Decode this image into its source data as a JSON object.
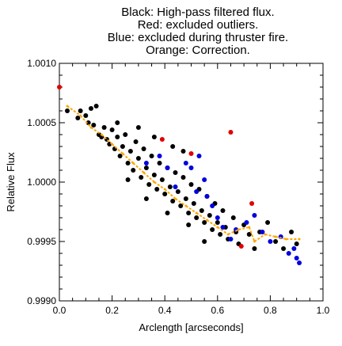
{
  "chart_data": {
    "type": "scatter",
    "title_lines": [
      "Black: High-pass filtered flux.",
      "Red: excluded outliers.",
      "Blue: excluded during thruster fire.",
      "Orange: Correction."
    ],
    "xlabel": "Arclength [arcseconds]",
    "ylabel": "Relative Flux",
    "xlim": [
      0.0,
      1.0
    ],
    "ylim": [
      0.999,
      1.001
    ],
    "x_ticks": [
      0.0,
      0.2,
      0.4,
      0.6,
      0.8,
      1.0
    ],
    "x_tick_labels": [
      "0.0",
      "0.2",
      "0.4",
      "0.6",
      "0.8",
      "1.0"
    ],
    "y_ticks": [
      0.999,
      0.9995,
      1.0,
      1.0005,
      1.001
    ],
    "y_tick_labels": [
      "0.9990",
      "0.9995",
      "1.0000",
      "1.0005",
      "1.0010"
    ],
    "grid": false,
    "series": [
      {
        "color": "#000000",
        "values": [
          [
            0.03,
            1.0006
          ],
          [
            0.07,
            1.00054
          ],
          [
            0.08,
            1.0006
          ],
          [
            0.1,
            1.00056
          ],
          [
            0.11,
            1.0005
          ],
          [
            0.12,
            1.00062
          ],
          [
            0.13,
            1.00048
          ],
          [
            0.14,
            1.00064
          ],
          [
            0.15,
            1.0004
          ],
          [
            0.16,
            1.00038
          ],
          [
            0.17,
            1.00046
          ],
          [
            0.18,
            1.00036
          ],
          [
            0.19,
            1.00032
          ],
          [
            0.2,
            1.00044
          ],
          [
            0.21,
            1.00028
          ],
          [
            0.22,
            1.00038
          ],
          [
            0.23,
            1.00022
          ],
          [
            0.24,
            1.0003
          ],
          [
            0.25,
            1.0004
          ],
          [
            0.26,
            1.00016
          ],
          [
            0.27,
            1.00026
          ],
          [
            0.28,
            1.0001
          ],
          [
            0.29,
            1.00034
          ],
          [
            0.3,
            1.0002
          ],
          [
            0.31,
            1.00004
          ],
          [
            0.32,
            1.00028
          ],
          [
            0.33,
            1.00012
          ],
          [
            0.34,
            0.99998
          ],
          [
            0.35,
            1.00022
          ],
          [
            0.36,
            1.00006
          ],
          [
            0.37,
            0.99994
          ],
          [
            0.38,
            1.00016
          ],
          [
            0.39,
            1.00002
          ],
          [
            0.4,
            0.9999
          ],
          [
            0.41,
            1.00012
          ],
          [
            0.42,
            0.99996
          ],
          [
            0.43,
            0.99984
          ],
          [
            0.44,
            1.00008
          ],
          [
            0.45,
            0.99992
          ],
          [
            0.46,
            0.9998
          ],
          [
            0.47,
            1.00004
          ],
          [
            0.48,
            0.99986
          ],
          [
            0.49,
            0.99974
          ],
          [
            0.5,
            0.99998
          ],
          [
            0.51,
            0.99982
          ],
          [
            0.52,
            0.9997
          ],
          [
            0.53,
            0.99994
          ],
          [
            0.54,
            0.99976
          ],
          [
            0.55,
            0.99966
          ],
          [
            0.56,
            0.99988
          ],
          [
            0.57,
            0.99972
          ],
          [
            0.58,
            0.9996
          ],
          [
            0.59,
            0.99982
          ],
          [
            0.6,
            0.99966
          ],
          [
            0.61,
            0.99956
          ],
          [
            0.62,
            0.99976
          ],
          [
            0.63,
            0.99962
          ],
          [
            0.64,
            0.99952
          ],
          [
            0.66,
            0.9997
          ],
          [
            0.67,
            0.99958
          ],
          [
            0.68,
            0.99948
          ],
          [
            0.7,
            0.99964
          ],
          [
            0.72,
            0.99956
          ],
          [
            0.74,
            0.99944
          ],
          [
            0.76,
            0.99958
          ],
          [
            0.79,
            0.99966
          ],
          [
            0.82,
            0.9995
          ],
          [
            0.85,
            0.99944
          ],
          [
            0.88,
            0.99958
          ],
          [
            0.9,
            0.99948
          ],
          [
            0.22,
            1.0005
          ],
          [
            0.3,
            1.00046
          ],
          [
            0.36,
            1.00038
          ],
          [
            0.43,
            1.0003
          ],
          [
            0.47,
            1.00026
          ],
          [
            0.26,
            1.00002
          ],
          [
            0.33,
            0.99986
          ],
          [
            0.41,
            0.99974
          ],
          [
            0.49,
            0.99964
          ],
          [
            0.55,
            0.9995
          ]
        ]
      },
      {
        "color": "#e00000",
        "values": [
          [
            0.0,
            1.0008
          ],
          [
            0.39,
            1.00036
          ],
          [
            0.5,
            1.00024
          ],
          [
            0.65,
            1.00042
          ],
          [
            0.69,
            0.99946
          ],
          [
            0.73,
            0.99982
          ]
        ]
      },
      {
        "color": "#0000e0",
        "values": [
          [
            0.33,
            1.00016
          ],
          [
            0.38,
            1.00022
          ],
          [
            0.41,
            1.00012
          ],
          [
            0.44,
            0.99996
          ],
          [
            0.48,
            1.00016
          ],
          [
            0.5,
            1.00012
          ],
          [
            0.52,
            0.99992
          ],
          [
            0.53,
            1.00022
          ],
          [
            0.55,
            1.00002
          ],
          [
            0.56,
            0.99988
          ],
          [
            0.58,
            0.9998
          ],
          [
            0.6,
            0.9997
          ],
          [
            0.62,
            0.99962
          ],
          [
            0.65,
            0.99952
          ],
          [
            0.67,
            0.9996
          ],
          [
            0.71,
            0.99966
          ],
          [
            0.74,
            0.99972
          ],
          [
            0.77,
            0.99958
          ],
          [
            0.8,
            0.9995
          ],
          [
            0.84,
            0.99954
          ],
          [
            0.87,
            0.9994
          ],
          [
            0.89,
            0.99944
          ],
          [
            0.9,
            0.99936
          ],
          [
            0.91,
            0.99932
          ]
        ]
      },
      {
        "color": "#ffa500",
        "type": "line",
        "values": [
          [
            0.03,
            1.00064
          ],
          [
            0.08,
            1.00056
          ],
          [
            0.12,
            1.00046
          ],
          [
            0.16,
            1.0004
          ],
          [
            0.2,
            1.00032
          ],
          [
            0.24,
            1.00024
          ],
          [
            0.28,
            1.00016
          ],
          [
            0.32,
            1.00008
          ],
          [
            0.36,
            1.0
          ],
          [
            0.4,
            0.99994
          ],
          [
            0.44,
            0.99986
          ],
          [
            0.48,
            0.9998
          ],
          [
            0.52,
            0.99974
          ],
          [
            0.56,
            0.99968
          ],
          [
            0.6,
            0.99962
          ],
          [
            0.64,
            0.99956
          ],
          [
            0.68,
            0.9996
          ],
          [
            0.72,
            0.99962
          ],
          [
            0.74,
            0.9995
          ],
          [
            0.78,
            0.99956
          ],
          [
            0.82,
            0.99954
          ],
          [
            0.86,
            0.99952
          ],
          [
            0.91,
            0.99952
          ]
        ]
      }
    ]
  }
}
